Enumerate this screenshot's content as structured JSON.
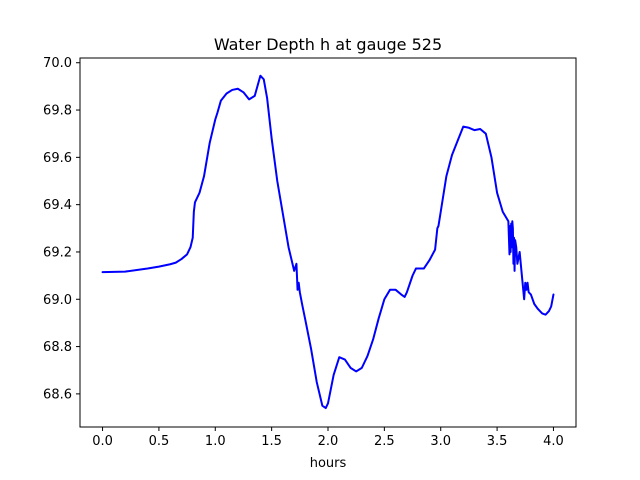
{
  "chart_data": {
    "type": "line",
    "title": "Water Depth h at gauge 525",
    "xlabel": "hours",
    "ylabel": "",
    "xlim": [
      -0.2,
      4.2
    ],
    "ylim": [
      68.46,
      70.02
    ],
    "xticks": [
      0.0,
      0.5,
      1.0,
      1.5,
      2.0,
      2.5,
      3.0,
      3.5,
      4.0
    ],
    "xtick_labels": [
      "0.0",
      "0.5",
      "1.0",
      "1.5",
      "2.0",
      "2.5",
      "3.0",
      "3.5",
      "4.0"
    ],
    "yticks": [
      68.6,
      68.8,
      69.0,
      69.2,
      69.4,
      69.6,
      69.8,
      70.0
    ],
    "ytick_labels": [
      "68.6",
      "68.8",
      "69.0",
      "69.2",
      "69.4",
      "69.6",
      "69.8",
      "70.0"
    ],
    "grid": false,
    "line_color": "#0000ff",
    "series": [
      {
        "x": [
          0.0,
          0.2,
          0.4,
          0.5,
          0.6,
          0.65,
          0.7,
          0.75,
          0.78,
          0.8,
          0.81,
          0.82,
          0.83,
          0.86,
          0.9,
          0.95,
          1.0,
          1.02,
          1.05,
          1.1,
          1.15,
          1.2,
          1.25,
          1.3,
          1.35,
          1.4,
          1.43,
          1.46,
          1.5,
          1.55,
          1.6,
          1.65,
          1.7,
          1.72,
          1.73,
          1.74,
          1.75,
          1.77,
          1.8,
          1.85,
          1.9,
          1.95,
          1.98,
          2.0,
          2.05,
          2.1,
          2.15,
          2.2,
          2.25,
          2.3,
          2.35,
          2.4,
          2.45,
          2.5,
          2.55,
          2.6,
          2.65,
          2.68,
          2.7,
          2.75,
          2.78,
          2.8,
          2.85,
          2.9,
          2.95,
          2.97,
          2.98,
          3.0,
          3.05,
          3.1,
          3.15,
          3.2,
          3.25,
          3.3,
          3.35,
          3.4,
          3.45,
          3.5,
          3.55,
          3.6,
          3.61,
          3.615,
          3.62,
          3.625,
          3.63,
          3.635,
          3.64,
          3.645,
          3.65,
          3.655,
          3.66,
          3.67,
          3.68,
          3.7,
          3.72,
          3.74,
          3.75,
          3.76,
          3.77,
          3.78,
          3.8,
          3.83,
          3.86,
          3.9,
          3.93,
          3.96,
          3.98,
          4.0
        ],
        "y": [
          69.115,
          69.117,
          69.13,
          69.138,
          69.148,
          69.155,
          69.17,
          69.19,
          69.22,
          69.26,
          69.37,
          69.41,
          69.42,
          69.45,
          69.52,
          69.66,
          69.76,
          69.79,
          69.84,
          69.87,
          69.885,
          69.89,
          69.875,
          69.845,
          69.86,
          69.945,
          69.93,
          69.85,
          69.68,
          69.5,
          69.36,
          69.22,
          69.12,
          69.15,
          69.04,
          69.07,
          69.03,
          68.98,
          68.91,
          68.79,
          68.65,
          68.55,
          68.54,
          68.56,
          68.68,
          68.755,
          68.745,
          68.71,
          68.695,
          68.71,
          68.76,
          68.83,
          68.92,
          69.0,
          69.04,
          69.04,
          69.02,
          69.01,
          69.03,
          69.1,
          69.13,
          69.13,
          69.13,
          69.165,
          69.21,
          69.3,
          69.31,
          69.37,
          69.52,
          69.61,
          69.67,
          69.73,
          69.725,
          69.715,
          69.72,
          69.7,
          69.6,
          69.45,
          69.37,
          69.33,
          69.19,
          69.31,
          69.2,
          69.32,
          69.22,
          69.33,
          69.3,
          69.15,
          69.26,
          69.12,
          69.25,
          69.22,
          69.15,
          69.2,
          69.1,
          69.0,
          69.07,
          69.04,
          69.07,
          69.03,
          69.02,
          68.98,
          68.96,
          68.94,
          68.935,
          68.95,
          68.97,
          69.02
        ]
      }
    ]
  }
}
